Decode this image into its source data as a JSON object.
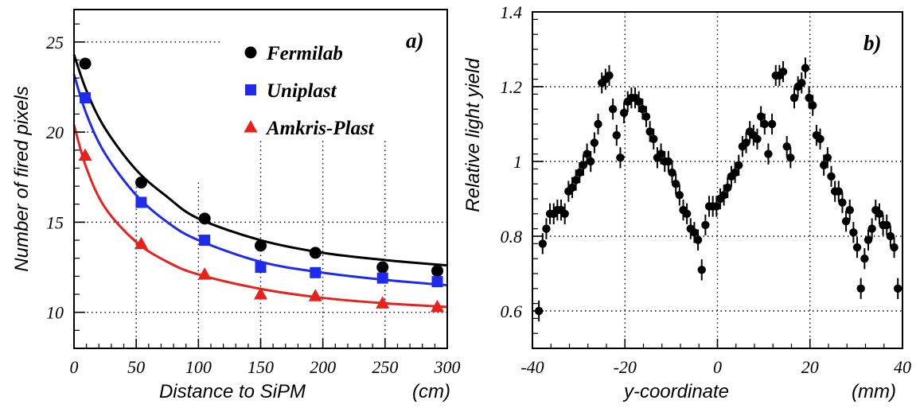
{
  "chart_data": [
    {
      "type": "scatter",
      "panel_label": "a)",
      "xlabel": "Distance to SiPM",
      "xunit": "(cm)",
      "ylabel": "Number of fired pixels",
      "xlim": [
        0,
        300
      ],
      "ylim": [
        8.0,
        26.8
      ],
      "xticks": [
        0,
        50,
        100,
        150,
        200,
        250,
        300
      ],
      "yticks": [
        10,
        15,
        20,
        25
      ],
      "grid": true,
      "legend_position": "top-right",
      "series": [
        {
          "name": "Fermilab",
          "marker": "circle",
          "color": "#000000",
          "x": [
            9,
            54,
            105,
            150,
            194,
            248,
            292
          ],
          "y": [
            23.8,
            17.2,
            15.2,
            13.7,
            13.3,
            12.5,
            12.3
          ],
          "fit": [
            [
              0,
              24.3
            ],
            [
              10,
              22.3
            ],
            [
              25,
              20.2
            ],
            [
              50,
              17.9
            ],
            [
              75,
              16.4
            ],
            [
              100,
              15.2
            ],
            [
              150,
              14.0
            ],
            [
              200,
              13.3
            ],
            [
              250,
              12.9
            ],
            [
              300,
              12.6
            ]
          ]
        },
        {
          "name": "Uniplast",
          "marker": "square",
          "color": "#1f2bea",
          "x": [
            9,
            54,
            105,
            150,
            194,
            248,
            292
          ],
          "y": [
            21.9,
            16.1,
            14.0,
            12.5,
            12.2,
            11.9,
            11.7
          ],
          "fit": [
            [
              0,
              23.2
            ],
            [
              10,
              21.0
            ],
            [
              25,
              18.8
            ],
            [
              50,
              16.5
            ],
            [
              75,
              15.0
            ],
            [
              100,
              14.0
            ],
            [
              150,
              12.8
            ],
            [
              200,
              12.2
            ],
            [
              250,
              11.8
            ],
            [
              300,
              11.5
            ]
          ]
        },
        {
          "name": "Amkris-Plast",
          "marker": "triangle",
          "color": "#e8211c",
          "x": [
            9,
            54,
            105,
            150,
            194,
            248,
            292
          ],
          "y": [
            18.7,
            13.8,
            12.1,
            11.0,
            10.9,
            10.5,
            10.3
          ],
          "fit": [
            [
              0,
              20.4
            ],
            [
              10,
              18.0
            ],
            [
              25,
              15.8
            ],
            [
              50,
              13.9
            ],
            [
              75,
              12.8
            ],
            [
              100,
              12.1
            ],
            [
              150,
              11.3
            ],
            [
              200,
              10.8
            ],
            [
              250,
              10.5
            ],
            [
              300,
              10.3
            ]
          ]
        }
      ]
    },
    {
      "type": "scatter",
      "panel_label": "b)",
      "xlabel": "y-coordinate",
      "xunit": "(mm)",
      "ylabel": "Relative light yield",
      "xlim": [
        -40,
        40
      ],
      "ylim": [
        0.5,
        1.4
      ],
      "xticks": [
        -40,
        -20,
        0,
        20,
        40
      ],
      "yticks": [
        0.6,
        0.8,
        1.0,
        1.2,
        1.4
      ],
      "ytick_labels": [
        "0.6",
        "0.8",
        "1",
        "1.2",
        "1.4"
      ],
      "grid": true,
      "error_bar": 0.028,
      "series": [
        {
          "name": "",
          "marker": "circle",
          "color": "#000000",
          "x": [
            -38.6,
            -37.8,
            -37.0,
            -36.2,
            -35.4,
            -34.6,
            -33.8,
            -33.0,
            -32.2,
            -31.4,
            -30.6,
            -29.8,
            -29.0,
            -28.2,
            -27.4,
            -26.6,
            -25.8,
            -25.0,
            -24.2,
            -23.4,
            -22.6,
            -21.8,
            -21.0,
            -20.2,
            -19.4,
            -18.6,
            -17.8,
            -17.0,
            -16.2,
            -15.4,
            -14.6,
            -13.8,
            -13.0,
            -12.2,
            -11.4,
            -10.6,
            -9.8,
            -9.0,
            -8.2,
            -7.4,
            -6.6,
            -5.8,
            -5.0,
            -4.2,
            -3.4,
            -2.6,
            -1.8,
            -1.0,
            -0.2,
            0.6,
            1.4,
            2.2,
            3.0,
            3.8,
            4.6,
            5.4,
            6.2,
            7.0,
            7.8,
            8.6,
            9.4,
            10.2,
            11.0,
            11.8,
            12.6,
            13.4,
            14.2,
            15.0,
            15.8,
            16.6,
            17.4,
            18.2,
            19.0,
            19.8,
            20.6,
            21.4,
            22.2,
            23.0,
            23.8,
            24.6,
            25.4,
            26.2,
            27.0,
            27.8,
            28.6,
            29.4,
            30.2,
            31.0,
            31.8,
            32.6,
            33.4,
            34.2,
            35.0,
            35.8,
            36.6,
            37.4,
            38.2,
            39.0
          ],
          "y": [
            0.6,
            0.78,
            0.82,
            0.86,
            0.86,
            0.87,
            0.87,
            0.86,
            0.92,
            0.93,
            0.95,
            0.97,
            0.99,
            1.02,
            1.0,
            1.05,
            1.1,
            1.21,
            1.22,
            1.23,
            1.14,
            1.07,
            1.01,
            1.13,
            1.16,
            1.17,
            1.17,
            1.16,
            1.14,
            1.12,
            1.08,
            1.06,
            1.01,
            1.02,
            1.0,
            1.0,
            0.97,
            0.94,
            0.91,
            0.87,
            0.86,
            0.82,
            0.81,
            0.79,
            0.71,
            0.83,
            0.88,
            0.88,
            0.88,
            0.9,
            0.91,
            0.93,
            0.96,
            0.97,
            0.99,
            1.04,
            1.05,
            1.08,
            1.07,
            1.06,
            1.12,
            1.1,
            1.02,
            1.1,
            1.23,
            1.23,
            1.24,
            1.04,
            1.01,
            1.17,
            1.2,
            1.21,
            1.25,
            1.17,
            1.15,
            1.07,
            1.06,
            0.99,
            1.01,
            0.96,
            0.92,
            0.92,
            0.89,
            0.84,
            0.87,
            0.81,
            0.77,
            0.66,
            0.74,
            0.79,
            0.82,
            0.87,
            0.86,
            0.83,
            0.83,
            0.8,
            0.77,
            0.66
          ]
        }
      ]
    }
  ]
}
